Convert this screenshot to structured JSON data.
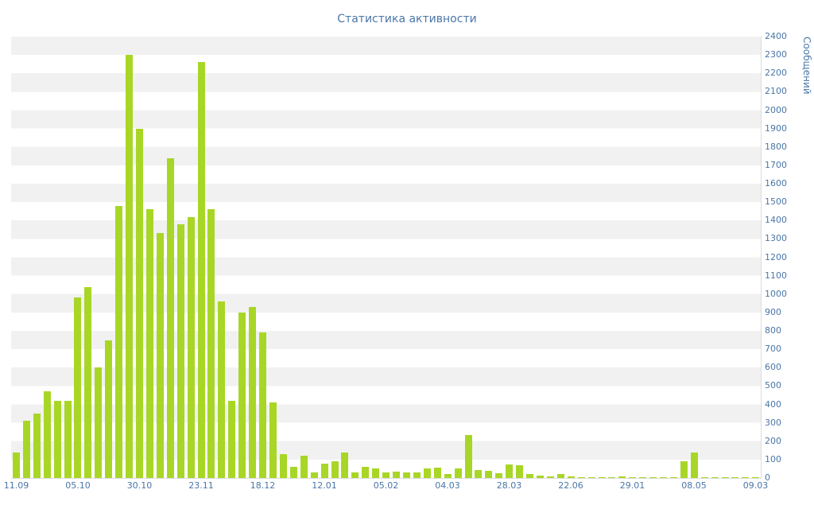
{
  "chart_data": {
    "type": "bar",
    "title": "Статистика активности",
    "xlabel": "",
    "ylabel": "Сообщений",
    "ylim": [
      0,
      2400
    ],
    "y_tick_step": 100,
    "grid": "horizontal-alternating-bands",
    "legend": "none",
    "y_ticks": [
      0,
      100,
      200,
      300,
      400,
      500,
      600,
      700,
      800,
      900,
      1000,
      1100,
      1200,
      1300,
      1400,
      1500,
      1600,
      1700,
      1800,
      1900,
      2000,
      2100,
      2200,
      2300,
      2400
    ],
    "x_tick_labels": [
      "11.09",
      "05.10",
      "30.10",
      "23.11",
      "18.12",
      "12.01",
      "05.02",
      "04.03",
      "28.03",
      "22.06",
      "29.01",
      "08.05",
      "09.03"
    ],
    "x_tick_indices": [
      0,
      6,
      12,
      18,
      24,
      30,
      36,
      42,
      48,
      54,
      60,
      66,
      72
    ],
    "values": [
      140,
      310,
      350,
      470,
      420,
      420,
      980,
      1040,
      600,
      750,
      1480,
      2300,
      1900,
      1460,
      1330,
      1740,
      1380,
      1420,
      2260,
      1460,
      960,
      420,
      900,
      930,
      790,
      410,
      130,
      60,
      120,
      30,
      80,
      90,
      140,
      30,
      60,
      50,
      30,
      35,
      30,
      30,
      50,
      55,
      20,
      50,
      235,
      45,
      40,
      25,
      75,
      70,
      20,
      15,
      10,
      20,
      8,
      5,
      5,
      5,
      5,
      8,
      5,
      5,
      5,
      5,
      5,
      90,
      140,
      5,
      5,
      5,
      3,
      3,
      3
    ]
  },
  "colors": {
    "bar": "#a8d627",
    "accent": "#4a76a8",
    "band": "#f1f1f1",
    "background": "#ffffff",
    "axis_line": "#dcdcdc"
  }
}
